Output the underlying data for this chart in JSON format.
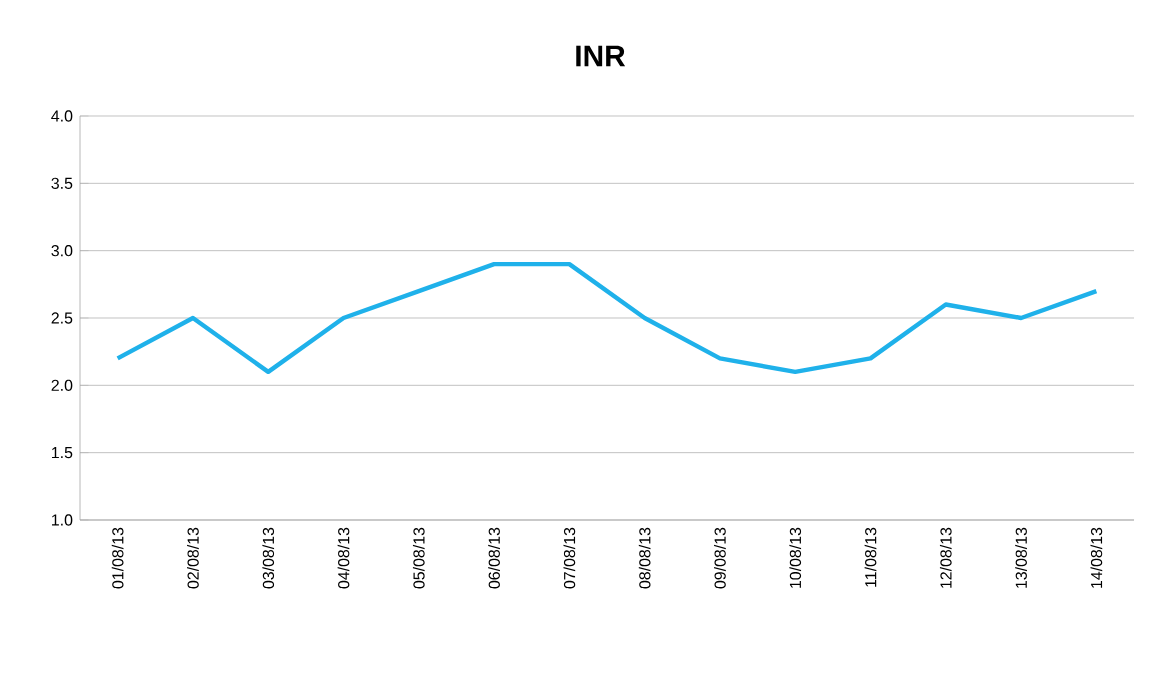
{
  "chart_data": {
    "type": "line",
    "title": "INR",
    "categories": [
      "01/08/13",
      "02/08/13",
      "03/08/13",
      "04/08/13",
      "05/08/13",
      "06/08/13",
      "07/08/13",
      "08/08/13",
      "09/08/13",
      "10/08/13",
      "11/08/13",
      "12/08/13",
      "13/08/13",
      "14/08/13"
    ],
    "series": [
      {
        "color": "#1fb1ea",
        "values": [
          2.2,
          2.5,
          2.1,
          2.5,
          2.7,
          2.9,
          2.9,
          2.5,
          2.2,
          2.1,
          2.2,
          2.6,
          2.5,
          2.7
        ]
      }
    ],
    "ylim": [
      1.0,
      4.0
    ],
    "yticks": [
      {
        "value": 1.0,
        "label": "1.0"
      },
      {
        "value": 1.5,
        "label": "1.5"
      },
      {
        "value": 2.0,
        "label": "2.0"
      },
      {
        "value": 2.5,
        "label": "2.5"
      },
      {
        "value": 3.0,
        "label": "3.0"
      },
      {
        "value": 3.5,
        "label": "3.5"
      },
      {
        "value": 4.0,
        "label": "4.0"
      }
    ],
    "grid": "y",
    "marker": "none",
    "line_style": "solid"
  }
}
